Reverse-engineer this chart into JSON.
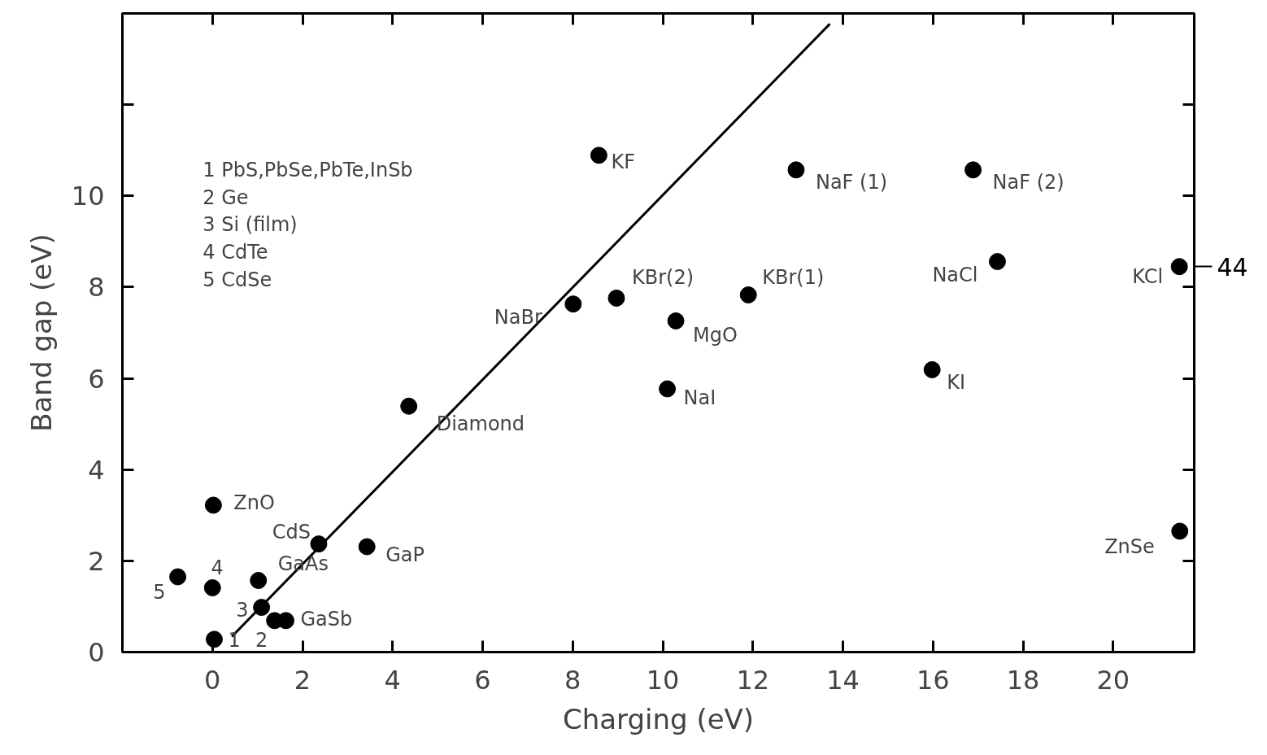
{
  "chart_data": {
    "type": "scatter",
    "xlabel": "Charging (eV)",
    "ylabel": "Band gap (eV)",
    "xlim": [
      -2,
      21.8
    ],
    "ylim": [
      0,
      14
    ],
    "xticks": [
      0,
      2,
      4,
      6,
      8,
      10,
      12,
      14,
      16,
      18,
      20
    ],
    "yticks": [
      0,
      2,
      4,
      6,
      8,
      10,
      {
        "value": 12,
        "label": null
      }
    ],
    "grid": false,
    "marker": "circle",
    "series": [
      {
        "type": "line",
        "marker": "none",
        "color": "#000000",
        "line_style": "solid",
        "x": [
          0.43,
          13.71
        ],
        "values": [
          0.34,
          13.77
        ]
      },
      {
        "color": "#000000",
        "x": [
          8.58,
          12.96,
          16.89,
          17.43,
          21.47,
          8.97,
          11.9,
          8.01,
          10.29,
          10.1,
          15.98,
          4.36,
          0.02,
          2.36,
          3.43,
          21.48,
          -0.77,
          0,
          1.02,
          1.09,
          1.38,
          1.63,
          0.04
        ],
        "values": [
          10.89,
          10.57,
          10.57,
          8.56,
          8.45,
          7.76,
          7.83,
          7.63,
          7.26,
          5.77,
          6.19,
          5.39,
          3.22,
          2.37,
          2.31,
          2.65,
          1.65,
          1.41,
          1.57,
          0.98,
          0.69,
          0.69,
          0.28
        ]
      }
    ],
    "annotations": [
      {
        "text": "KF",
        "x": 8.58,
        "y": 10.89
      },
      {
        "text": "NaF (1)",
        "x": 12.96,
        "y": 10.57
      },
      {
        "text": "NaF (2)",
        "x": 16.89,
        "y": 10.57
      },
      {
        "text": "NaCl",
        "x": 17.43,
        "y": 8.56
      },
      {
        "text": "KCl",
        "x": 21.47,
        "y": 8.45
      },
      {
        "text": "KBr(2)",
        "x": 8.97,
        "y": 7.76
      },
      {
        "text": "KBr(1)",
        "x": 11.9,
        "y": 7.83
      },
      {
        "text": "NaBr",
        "x": 8.01,
        "y": 7.63
      },
      {
        "text": "MgO",
        "x": 10.29,
        "y": 7.26
      },
      {
        "text": "NaI",
        "x": 10.1,
        "y": 5.77
      },
      {
        "text": "KI",
        "x": 15.98,
        "y": 6.19
      },
      {
        "text": "Diamond",
        "x": 4.36,
        "y": 5.39
      },
      {
        "text": "ZnO",
        "x": 0.02,
        "y": 3.22
      },
      {
        "text": "CdS",
        "x": 2.36,
        "y": 2.37
      },
      {
        "text": "GaP",
        "x": 3.43,
        "y": 2.31
      },
      {
        "text": "ZnSe",
        "x": 21.48,
        "y": 2.65
      },
      {
        "text": "5",
        "x": -0.77,
        "y": 1.65
      },
      {
        "text": "4",
        "x": 0,
        "y": 1.41
      },
      {
        "text": "GaAs",
        "x": 1.02,
        "y": 1.57
      },
      {
        "text": "3",
        "x": 1.09,
        "y": 0.98
      },
      {
        "text": "2",
        "x": 1.38,
        "y": 0.69
      },
      {
        "text": "GaSb",
        "x": 1.63,
        "y": 0.69
      },
      {
        "text": "1",
        "x": 0.04,
        "y": 0.28
      },
      {
        "text": "44",
        "x": 21.47,
        "y": 8.45
      },
      "1  PbS,PbSe,PbTe,InSb",
      "2  Ge",
      "3  Si (film)",
      "4  CdTe",
      "5  CdSe"
    ]
  }
}
